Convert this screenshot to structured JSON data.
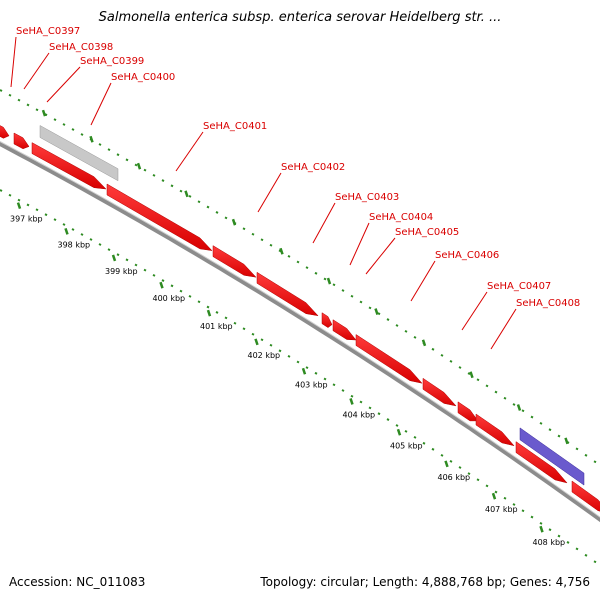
{
  "title": "Salmonella enterica subsp. enterica serovar Heidelberg str. ...",
  "footer": {
    "accession": "Accession: NC_011083",
    "summary": "Topology: circular; Length: 4,888,768 bp; Genes: 4,756"
  },
  "colors": {
    "forward_gene": "#ff0000",
    "pseudo_gene": "#c8c8c8",
    "rna_gene": "#6a5acd",
    "backbone": "#8c8c8c",
    "tick": "#2e8b22",
    "label": "#d90000"
  },
  "gene_labels": [
    "SeHA_C0397",
    "SeHA_C0398",
    "SeHA_C0399",
    "SeHA_C0400",
    "SeHA_C0401",
    "SeHA_C0402",
    "SeHA_C0403",
    "SeHA_C0404",
    "SeHA_C0405",
    "SeHA_C0406",
    "SeHA_C0407",
    "SeHA_C0408"
  ],
  "kbp_labels": [
    "397 kbp",
    "398 kbp",
    "399 kbp",
    "400 kbp",
    "401 kbp",
    "402 kbp",
    "403 kbp",
    "404 kbp",
    "405 kbp",
    "406 kbp",
    "407 kbp",
    "408 kbp"
  ]
}
